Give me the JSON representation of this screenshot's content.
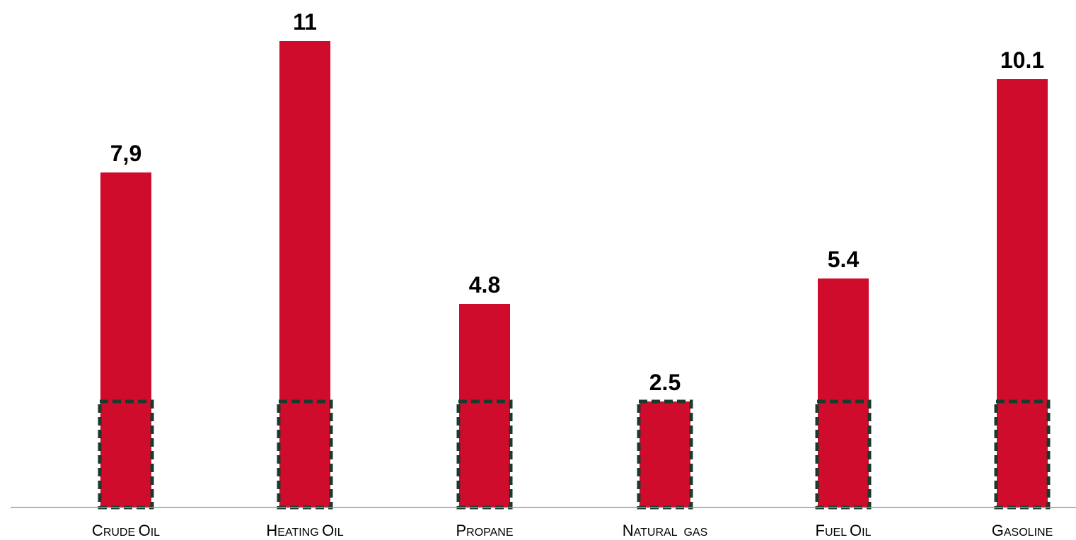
{
  "chart_data": {
    "type": "bar",
    "categories": [
      "Crude Oil",
      "Heating Oil",
      "Propane",
      "Natural  gas",
      "Fuel Oil",
      "Gasoline"
    ],
    "category_labels": [
      {
        "first": "C",
        "rest": "RUDE",
        "first2": "O",
        "rest2": "IL"
      },
      {
        "first": "H",
        "rest": "EATING",
        "first2": "O",
        "rest2": "IL"
      },
      {
        "first": "P",
        "rest": "ROPANE",
        "first2": "",
        "rest2": ""
      },
      {
        "first": "N",
        "rest": "ATURAL",
        "first2": "",
        "rest2": "GAS"
      },
      {
        "first": "F",
        "rest": "UEL",
        "first2": "O",
        "rest2": "IL"
      },
      {
        "first": "G",
        "rest": "ASOLINE",
        "first2": "",
        "rest2": ""
      }
    ],
    "values": [
      7.9,
      11,
      4.8,
      2.5,
      5.4,
      10.1
    ],
    "value_labels": [
      "7,9",
      "11",
      "4.8",
      "2.5",
      "5.4",
      "10.1"
    ],
    "highlight_value": 2.5,
    "ylim": [
      0,
      11
    ],
    "title": "",
    "xlabel": "",
    "ylabel": "",
    "grid": false,
    "legend": "none",
    "colors": {
      "bar": "#d00c2c",
      "highlight_border": "#1c3a2c",
      "axis": "#9a9a9a"
    }
  }
}
